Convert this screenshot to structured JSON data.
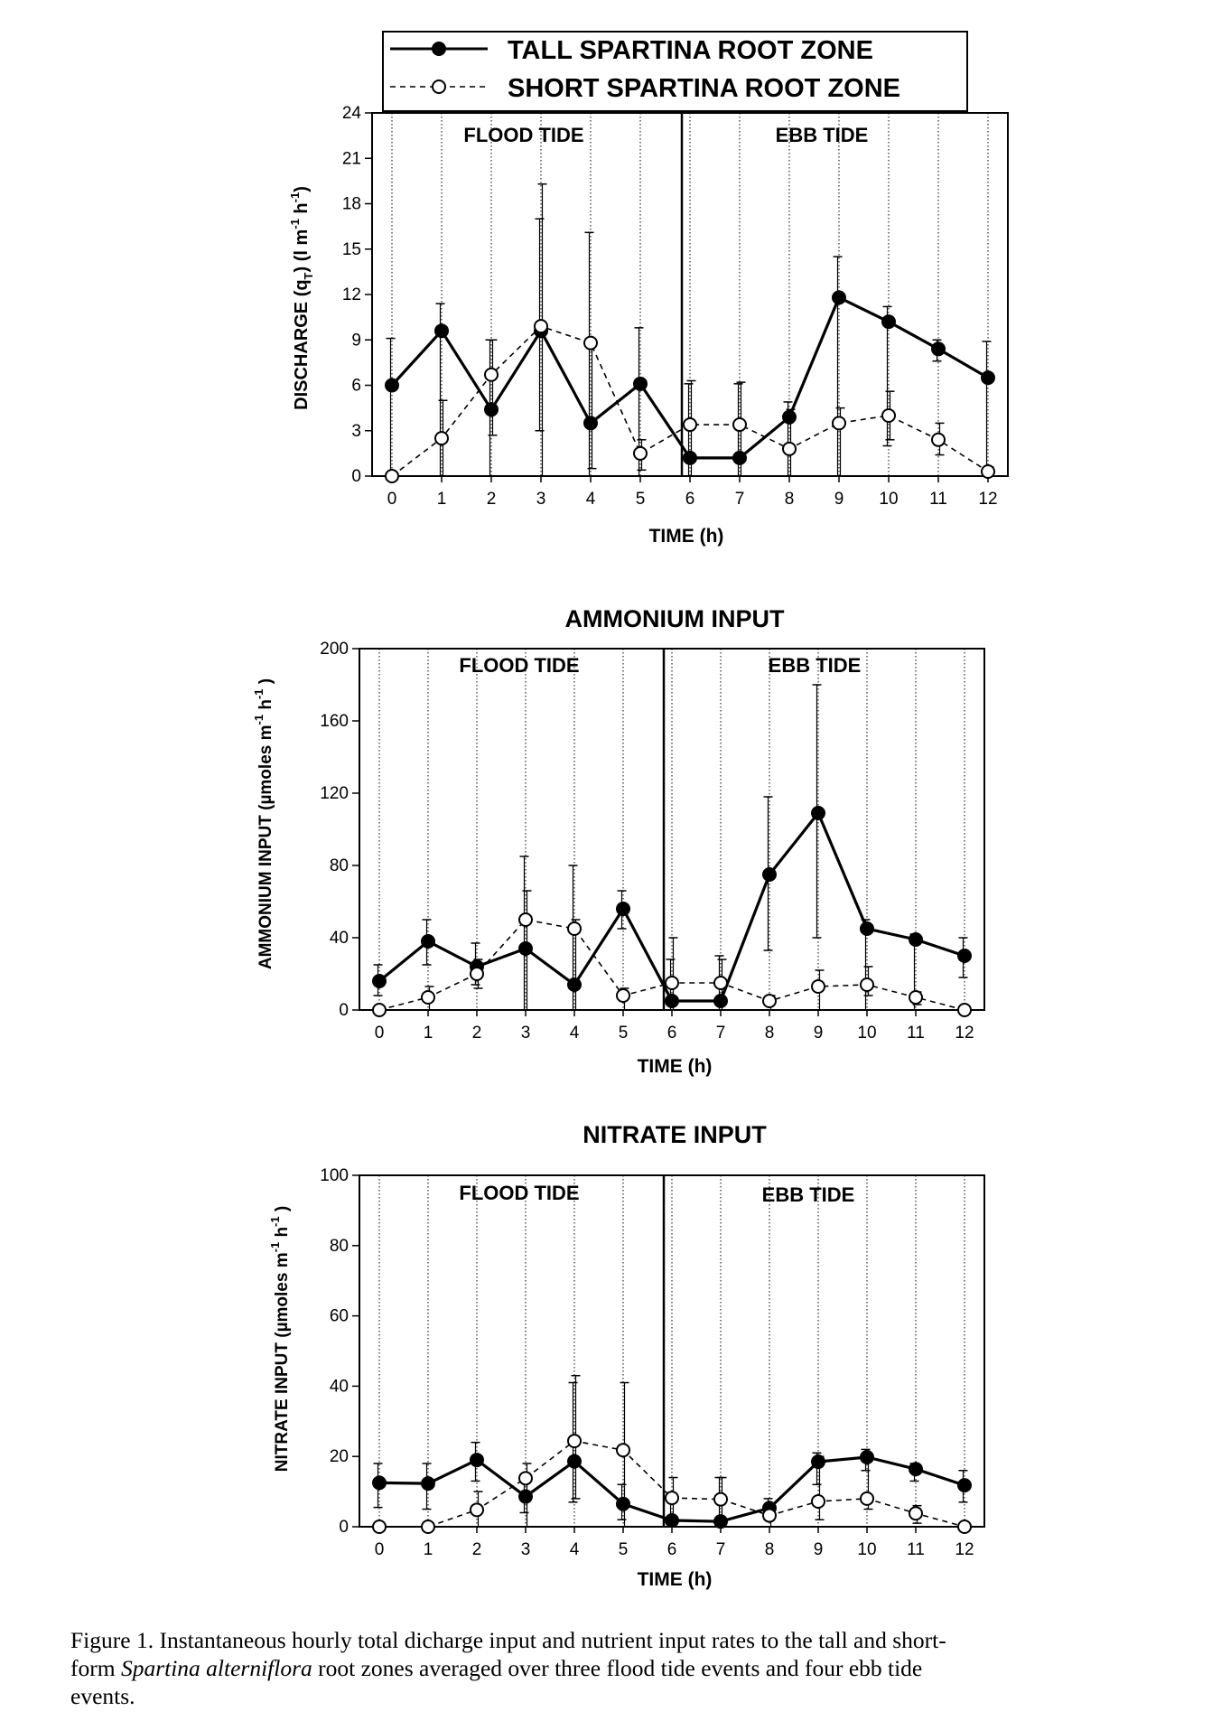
{
  "legend": {
    "tall_label": "TALL SPARTINA ROOT ZONE",
    "short_label": "SHORT SPARTINA ROOT ZONE"
  },
  "chart_data": [
    {
      "type": "line",
      "title": "",
      "xlabel": "TIME (h)",
      "ylabel": "DISCHARGE (q_T) (l m^-1 h^-1)",
      "ylabel_parts": [
        "DISCHARGE (q",
        "T",
        ") (l m",
        "-1",
        " h",
        "-1",
        ")"
      ],
      "x": [
        0,
        1,
        2,
        3,
        4,
        5,
        6,
        7,
        8,
        9,
        10,
        11,
        12
      ],
      "ylim": [
        0,
        24
      ],
      "yticks": [
        0,
        3,
        6,
        9,
        12,
        15,
        18,
        21,
        24
      ],
      "annotations": [
        "FLOOD TIDE",
        "EBB TIDE"
      ],
      "series": [
        {
          "name": "TALL SPARTINA ROOT ZONE",
          "values": [
            6,
            9.6,
            4.4,
            9.6,
            3.5,
            6.1,
            1.2,
            1.2,
            3.9,
            11.8,
            10.2,
            8.4,
            6.5
          ],
          "err_low": [
            0,
            0,
            0,
            3,
            0,
            0,
            0,
            0,
            0,
            0,
            2,
            7.6,
            0
          ],
          "err_high": [
            9.1,
            11.4,
            9,
            17,
            16.1,
            9.8,
            6.1,
            6.1,
            4.9,
            14.5,
            11.2,
            9,
            8.9
          ]
        },
        {
          "name": "SHORT SPARTINA ROOT ZONE",
          "values": [
            0,
            2.5,
            6.7,
            9.9,
            8.8,
            1.5,
            3.4,
            3.4,
            1.8,
            3.5,
            4,
            2.4,
            0.3
          ],
          "err_low": [
            0,
            0,
            2.7,
            0,
            0.5,
            0.4,
            0,
            0,
            0,
            0,
            2.4,
            1.4,
            0
          ],
          "err_high": [
            0,
            5,
            9,
            19.3,
            9,
            2.4,
            6.3,
            6.2,
            4.4,
            4.5,
            5.6,
            3.5,
            0.6
          ]
        }
      ]
    },
    {
      "type": "line",
      "title": "AMMONIUM INPUT",
      "xlabel": "TIME (h)",
      "ylabel": "AMMONIUM INPUT (µmoles m^-1 h^-1)",
      "ylabel_parts": [
        "AMMONIUM INPUT (µmoles m",
        "-1",
        " h",
        "-1",
        " )"
      ],
      "x": [
        0,
        1,
        2,
        3,
        4,
        5,
        6,
        7,
        8,
        9,
        10,
        11,
        12
      ],
      "ylim": [
        0,
        200
      ],
      "yticks": [
        0,
        40,
        80,
        120,
        160,
        200
      ],
      "annotations": [
        "FLOOD TIDE",
        "EBB TIDE"
      ],
      "series": [
        {
          "name": "TALL SPARTINA ROOT ZONE",
          "values": [
            16,
            38,
            24,
            34,
            14,
            56,
            5,
            5,
            75,
            109,
            45,
            39,
            30
          ],
          "err_low": [
            8,
            25,
            14,
            0,
            0,
            45,
            0,
            0,
            33,
            40,
            0,
            0,
            18
          ],
          "err_high": [
            25,
            50,
            37,
            85,
            80,
            66,
            28,
            30,
            118,
            180,
            50,
            42,
            40
          ]
        },
        {
          "name": "SHORT SPARTINA ROOT ZONE",
          "values": [
            0,
            7,
            20,
            50,
            45,
            8,
            15,
            15,
            5,
            13,
            14,
            7,
            0
          ],
          "err_low": [
            0,
            0,
            12,
            0,
            0,
            0,
            0,
            0,
            0,
            0,
            8,
            3,
            0
          ],
          "err_high": [
            2,
            13,
            28,
            66,
            50,
            12,
            40,
            28,
            8,
            22,
            24,
            10,
            2
          ]
        }
      ]
    },
    {
      "type": "line",
      "title": "NITRATE INPUT",
      "xlabel": "TIME (h)",
      "ylabel": "NITRATE INPUT (µmoles m^-1 h^-1)",
      "ylabel_parts": [
        "NITRATE INPUT (µmoles m",
        "-1",
        " h",
        "-1",
        " )"
      ],
      "x": [
        0,
        1,
        2,
        3,
        4,
        5,
        6,
        7,
        8,
        9,
        10,
        11,
        12
      ],
      "ylim": [
        0,
        100
      ],
      "yticks": [
        0,
        20,
        40,
        60,
        80,
        100
      ],
      "annotations": [
        "FLOOD TIDE",
        "EBB TIDE"
      ],
      "series": [
        {
          "name": "TALL SPARTINA ROOT ZONE",
          "values": [
            12.5,
            12.3,
            19,
            8.6,
            18.6,
            6.5,
            1.8,
            1.5,
            5.3,
            18.5,
            19.8,
            16.4,
            11.8
          ],
          "err_low": [
            5.5,
            5,
            13,
            4,
            7,
            2,
            0,
            0,
            2,
            12,
            16,
            13,
            7
          ],
          "err_high": [
            18,
            18,
            24,
            14,
            41,
            12,
            8,
            14,
            8,
            21,
            22,
            18,
            16
          ]
        },
        {
          "name": "SHORT SPARTINA ROOT ZONE",
          "values": [
            0,
            0,
            4.8,
            13.8,
            24.4,
            21.8,
            8.2,
            7.8,
            3.2,
            7.2,
            8,
            3.8,
            0
          ],
          "err_low": [
            0,
            0,
            0,
            0,
            8,
            0,
            0,
            0,
            0,
            2,
            5,
            1,
            0
          ],
          "err_high": [
            1,
            1,
            10,
            18,
            43,
            41,
            14,
            14,
            6,
            20,
            20,
            6,
            1
          ]
        }
      ]
    }
  ],
  "caption": {
    "line1": "Figure 1.  Instantaneous hourly total dicharge input and nutrient input rates to the tall and short-",
    "line2_pre": "form ",
    "line2_italic": "Spartina alterniflora",
    "line2_post": " root zones averaged over three flood tide events and four ebb tide",
    "line3": "events."
  }
}
